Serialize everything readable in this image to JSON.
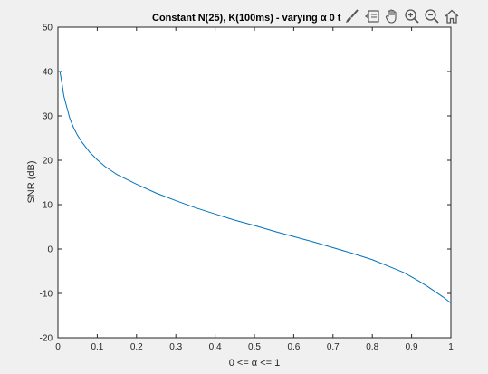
{
  "chart_data": {
    "type": "line",
    "title": "Constant N(25), K(100ms) - varying α 0 t",
    "xlabel": "0 <= α <= 1",
    "ylabel": "SNR (dB)",
    "xlim": [
      0,
      1
    ],
    "ylim": [
      -20,
      50
    ],
    "xticks": [
      "0",
      "0.1",
      "0.2",
      "0.3",
      "0.4",
      "0.5",
      "0.6",
      "0.7",
      "0.8",
      "0.9",
      "1"
    ],
    "yticks": [
      "-20",
      "-10",
      "0",
      "10",
      "20",
      "30",
      "40",
      "50"
    ],
    "grid": false,
    "series": [
      {
        "color": "#0072bd",
        "x": [
          0,
          0.005,
          0.01,
          0.015,
          0.02,
          0.03,
          0.04,
          0.05,
          0.06,
          0.08,
          0.1,
          0.12,
          0.15,
          0.2,
          0.25,
          0.3,
          0.35,
          0.4,
          0.45,
          0.5,
          0.55,
          0.6,
          0.65,
          0.7,
          0.75,
          0.8,
          0.85,
          0.88,
          0.9,
          0.92,
          0.94,
          0.96,
          0.98,
          1.0
        ],
        "y": [
          40,
          40,
          37.5,
          34.5,
          32.8,
          29.5,
          27.3,
          25.6,
          24.2,
          21.9,
          20.1,
          18.6,
          16.8,
          14.6,
          12.6,
          10.9,
          9.3,
          7.9,
          6.5,
          5.3,
          4.0,
          2.8,
          1.6,
          0.3,
          -1.0,
          -2.4,
          -4.2,
          -5.3,
          -6.3,
          -7.3,
          -8.4,
          -9.6,
          -10.8,
          -12.2
        ]
      }
    ]
  },
  "toolbar": {
    "icons": [
      "brush-icon",
      "datatip-icon",
      "pan-icon",
      "zoom-in-icon",
      "zoom-out-icon",
      "home-icon"
    ]
  }
}
